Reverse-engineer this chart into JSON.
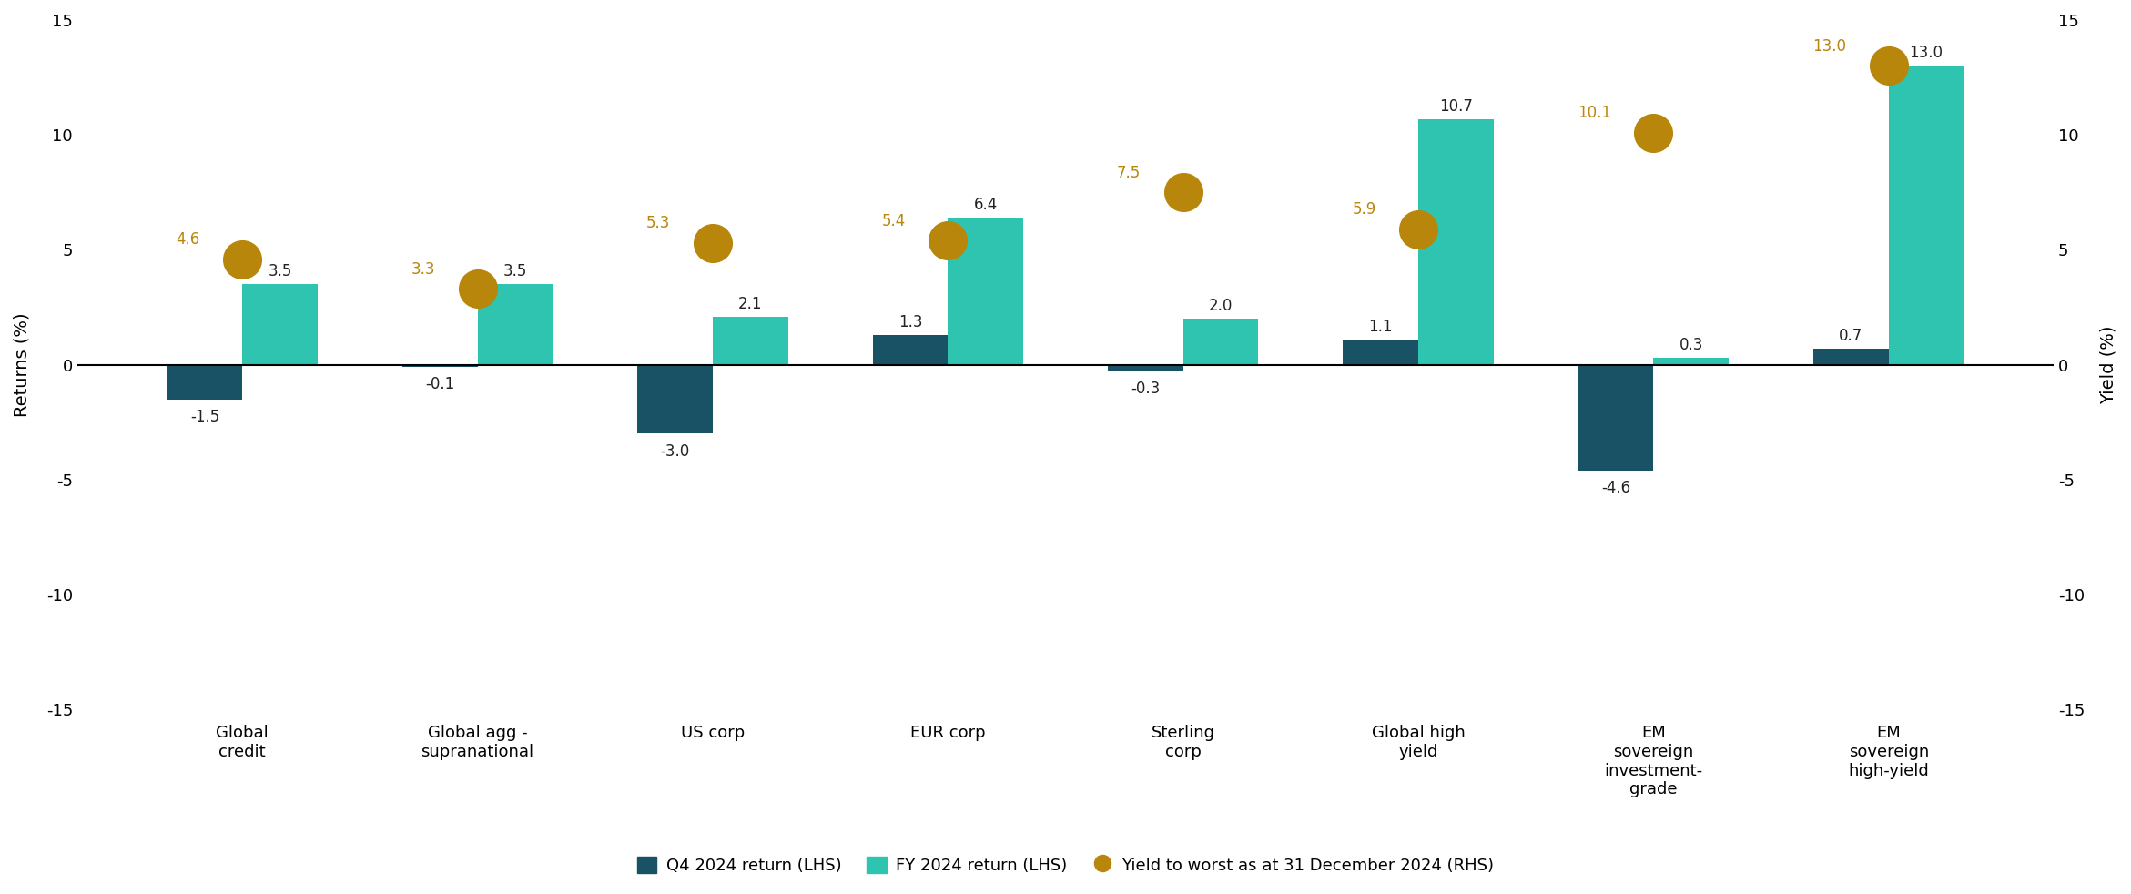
{
  "categories": [
    "Global\ncredit",
    "Global agg -\nsupranational",
    "US corp",
    "EUR corp",
    "Sterling\ncorp",
    "Global high\nyield",
    "EM\nsovereign\ninvestment-\ngrade",
    "EM\nsovereign\nhigh-yield"
  ],
  "q4_returns": [
    -1.5,
    -0.1,
    -3.0,
    1.3,
    -0.3,
    1.1,
    -4.6,
    0.7
  ],
  "fy_returns": [
    3.5,
    3.5,
    2.1,
    6.4,
    2.0,
    10.7,
    0.3,
    13.0
  ],
  "ytw": [
    4.6,
    3.3,
    5.3,
    5.4,
    7.5,
    5.9,
    10.1,
    13.0
  ],
  "q4_color": "#1a5265",
  "fy_color": "#2ec4b0",
  "ytw_color": "#b8860b",
  "ylim": [
    -15,
    15
  ],
  "ylabel_left": "Returns (%)",
  "ylabel_right": "Yield (%)",
  "background_color": "#ffffff",
  "legend_labels": [
    "Q4 2024 return (LHS)",
    "FY 2024 return (LHS)",
    "Yield to worst as at 31 December 2024 (RHS)"
  ],
  "bar_width": 0.32,
  "dot_size": 900,
  "figsize": [
    23.41,
    9.82
  ],
  "dpi": 100,
  "ytick_fontsize": 13,
  "xtick_fontsize": 13,
  "ylabel_fontsize": 14,
  "annot_fontsize": 12,
  "legend_fontsize": 13
}
